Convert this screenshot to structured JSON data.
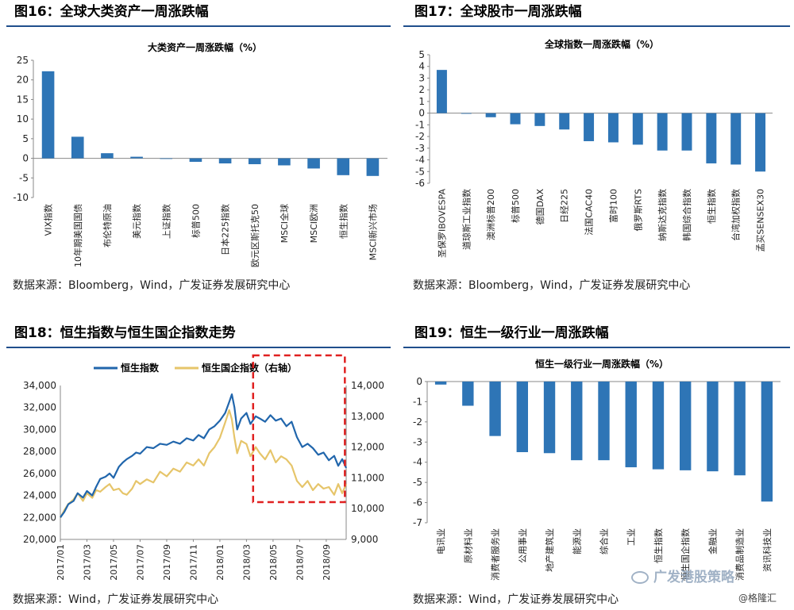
{
  "panels": {
    "p16": {
      "title": "图16：全球大类资产一周涨跌幅",
      "source": "数据来源：Bloomberg，Wind，广发证券发展研究中心"
    },
    "p17": {
      "title": "图17：全球股市一周涨跌幅",
      "source": "数据来源：Bloomberg，Wind，广发证券发展研究中心"
    },
    "p18": {
      "title": "图18：恒生指数与恒生国企指数走势",
      "source": "数据来源：Wind，广发证券发展研究中心"
    },
    "p19": {
      "title": "图19：恒生一级行业一周涨跌幅",
      "source": "数据来源：Wind，广发证券发展研究中心"
    }
  },
  "watermark": "广发港股策略",
  "corner_mark": "@格隆汇",
  "colors": {
    "bar": "#2e75b6",
    "line1": "#2166ac",
    "line2": "#e6c56a",
    "box": "#e02020",
    "title_rule": "#1f4e8c"
  },
  "chart_data": [
    {
      "id": "c16",
      "type": "bar",
      "title": "大类资产一周涨跌幅（%）",
      "categories": [
        "VIX指数",
        "10年期美国国债",
        "布伦特原油",
        "美元指数",
        "上证指数",
        "标普500",
        "日本225指数",
        "欧元区斯托克50",
        "MSCI全球",
        "MSCI欧洲",
        "恒生指数",
        "MSCI新兴市场"
      ],
      "values": [
        22.2,
        5.5,
        1.3,
        0.4,
        -0.1,
        -0.9,
        -1.3,
        -1.5,
        -1.8,
        -2.6,
        -4.3,
        -4.5
      ],
      "ylim": [
        -10,
        25
      ],
      "yticks": [
        25,
        20,
        15,
        10,
        5,
        0,
        -5,
        -10
      ]
    },
    {
      "id": "c17",
      "type": "bar",
      "title": "全球指数一周涨跌幅（%）",
      "categories": [
        "圣保罗IBOVESPA",
        "道琼斯工业指数",
        "澳洲标普200",
        "标普500",
        "德国DAX",
        "日经225",
        "法国CAC40",
        "富时100",
        "俄罗斯RTS",
        "纳斯达克指数",
        "韩国综合指数",
        "恒生指数",
        "台湾加权指数",
        "孟买SENSEX30"
      ],
      "values": [
        3.7,
        -0.05,
        -0.35,
        -0.95,
        -1.1,
        -1.4,
        -2.4,
        -2.5,
        -2.7,
        -3.2,
        -3.2,
        -4.3,
        -4.4,
        -5.0
      ],
      "ylim": [
        -6,
        5
      ],
      "yticks": [
        5,
        4,
        3,
        2,
        1,
        0,
        -1,
        -2,
        -3,
        -4,
        -5,
        -6
      ]
    },
    {
      "id": "c18",
      "type": "line",
      "series": [
        {
          "name": "恒生指数",
          "axis": "left",
          "points": [
            [
              0,
              22000
            ],
            [
              0.3,
              22500
            ],
            [
              0.6,
              23200
            ],
            [
              1,
              23500
            ],
            [
              1.3,
              24200
            ],
            [
              1.7,
              23800
            ],
            [
              2,
              24400
            ],
            [
              2.4,
              24000
            ],
            [
              2.7,
              24800
            ],
            [
              3,
              25500
            ],
            [
              3.4,
              25700
            ],
            [
              3.7,
              26000
            ],
            [
              4,
              25600
            ],
            [
              4.4,
              26600
            ],
            [
              4.7,
              27000
            ],
            [
              5,
              27300
            ],
            [
              5.4,
              27600
            ],
            [
              5.7,
              27900
            ],
            [
              6,
              27800
            ],
            [
              6.5,
              28400
            ],
            [
              7,
              28300
            ],
            [
              7.5,
              28700
            ],
            [
              8,
              28600
            ],
            [
              8.5,
              28900
            ],
            [
              9,
              28700
            ],
            [
              9.5,
              29200
            ],
            [
              10,
              29000
            ],
            [
              10.4,
              29500
            ],
            [
              10.8,
              29200
            ],
            [
              11.2,
              30000
            ],
            [
              11.6,
              30300
            ],
            [
              12,
              30800
            ],
            [
              12.4,
              31500
            ],
            [
              12.7,
              32500
            ],
            [
              12.9,
              33200
            ],
            [
              13.1,
              32000
            ],
            [
              13.3,
              30000
            ],
            [
              13.6,
              31000
            ],
            [
              14,
              31500
            ],
            [
              14.3,
              30500
            ],
            [
              14.7,
              31200
            ],
            [
              15,
              31000
            ],
            [
              15.4,
              30700
            ],
            [
              15.8,
              31300
            ],
            [
              16.2,
              30800
            ],
            [
              16.6,
              31000
            ],
            [
              17,
              30300
            ],
            [
              17.4,
              30700
            ],
            [
              17.8,
              29300
            ],
            [
              18.2,
              28400
            ],
            [
              18.6,
              28700
            ],
            [
              19,
              28300
            ],
            [
              19.4,
              27700
            ],
            [
              19.8,
              27900
            ],
            [
              20.2,
              27200
            ],
            [
              20.6,
              27600
            ],
            [
              20.9,
              26700
            ],
            [
              21.2,
              27300
            ],
            [
              21.5,
              26500
            ]
          ]
        },
        {
          "name": "恒生国企指数（右轴）",
          "axis": "right",
          "points": [
            [
              0,
              9700
            ],
            [
              0.3,
              9950
            ],
            [
              0.6,
              10150
            ],
            [
              1,
              10300
            ],
            [
              1.3,
              10500
            ],
            [
              1.7,
              10250
            ],
            [
              2,
              10500
            ],
            [
              2.4,
              10350
            ],
            [
              2.7,
              10600
            ],
            [
              3,
              10550
            ],
            [
              3.4,
              10700
            ],
            [
              3.7,
              10800
            ],
            [
              4,
              10600
            ],
            [
              4.4,
              10650
            ],
            [
              4.7,
              10500
            ],
            [
              5,
              10450
            ],
            [
              5.4,
              10650
            ],
            [
              5.7,
              10900
            ],
            [
              6,
              10800
            ],
            [
              6.5,
              10950
            ],
            [
              7,
              10850
            ],
            [
              7.5,
              11200
            ],
            [
              8,
              11050
            ],
            [
              8.5,
              11300
            ],
            [
              9,
              11200
            ],
            [
              9.5,
              11500
            ],
            [
              10,
              11400
            ],
            [
              10.4,
              11600
            ],
            [
              10.8,
              11400
            ],
            [
              11.2,
              11800
            ],
            [
              11.6,
              12000
            ],
            [
              12,
              12300
            ],
            [
              12.4,
              12800
            ],
            [
              12.7,
              13200
            ],
            [
              12.9,
              12900
            ],
            [
              13.1,
              12300
            ],
            [
              13.3,
              11800
            ],
            [
              13.6,
              12200
            ],
            [
              14,
              12100
            ],
            [
              14.3,
              11700
            ],
            [
              14.7,
              12000
            ],
            [
              15,
              11800
            ],
            [
              15.4,
              11600
            ],
            [
              15.8,
              11900
            ],
            [
              16.2,
              11500
            ],
            [
              16.6,
              11700
            ],
            [
              17,
              11600
            ],
            [
              17.4,
              11400
            ],
            [
              17.8,
              10900
            ],
            [
              18.2,
              10700
            ],
            [
              18.6,
              10900
            ],
            [
              19,
              10600
            ],
            [
              19.4,
              10800
            ],
            [
              19.8,
              10650
            ],
            [
              20.2,
              10700
            ],
            [
              20.6,
              10450
            ],
            [
              20.9,
              10800
            ],
            [
              21.2,
              10500
            ],
            [
              21.5,
              10800
            ]
          ]
        }
      ],
      "xticks": [
        "2017/01",
        "2017/03",
        "2017/05",
        "2017/07",
        "2017/09",
        "2017/11",
        "2018/01",
        "2018/03",
        "2018/05",
        "2018/07",
        "2018/09"
      ],
      "ylim_left": [
        20000,
        34000
      ],
      "yticks_left": [
        "34,000",
        "32,000",
        "30,000",
        "28,000",
        "26,000",
        "24,000",
        "22,000",
        "20,000"
      ],
      "ylim_right": [
        9000,
        14000
      ],
      "yticks_right": [
        "14,000",
        "13,000",
        "12,000",
        "11,000",
        "10,000",
        "9,000"
      ]
    },
    {
      "id": "c19",
      "type": "bar",
      "title": "恒生一级行业一周涨跌幅（%）",
      "categories": [
        "电讯业",
        "原材料业",
        "消费者服务业",
        "公用事业",
        "地产建筑业",
        "能源业",
        "综合业",
        "工业",
        "恒生指数",
        "恒生国企指数",
        "金融业",
        "消费品制造业",
        "资讯科技业"
      ],
      "values": [
        -0.15,
        -1.2,
        -2.7,
        -3.5,
        -3.55,
        -3.9,
        -3.9,
        -4.25,
        -4.35,
        -4.4,
        -4.45,
        -4.65,
        -5.95
      ],
      "ylim": [
        -7,
        0
      ],
      "yticks": [
        0,
        -1,
        -2,
        -3,
        -4,
        -5,
        -6,
        -7
      ]
    }
  ]
}
